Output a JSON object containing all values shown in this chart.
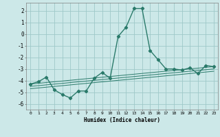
{
  "title": "",
  "xlabel": "Humidex (Indice chaleur)",
  "background_color": "#cce8e8",
  "grid_color": "#9ec8c8",
  "line_color": "#2a7a6a",
  "xlim": [
    -0.5,
    23.5
  ],
  "ylim": [
    -6.5,
    2.7
  ],
  "x_ticks": [
    0,
    1,
    2,
    3,
    4,
    5,
    6,
    7,
    8,
    9,
    10,
    11,
    12,
    13,
    14,
    15,
    16,
    17,
    18,
    19,
    20,
    21,
    22,
    23
  ],
  "y_ticks": [
    -6,
    -5,
    -4,
    -3,
    -2,
    -1,
    0,
    1,
    2
  ],
  "series": [
    {
      "x": [
        0,
        1,
        2,
        3,
        4,
        5,
        6,
        7,
        8,
        9,
        10,
        11,
        12,
        13,
        14,
        15,
        16,
        17,
        18,
        19,
        20,
        21,
        22,
        23
      ],
      "y": [
        -4.3,
        -4.1,
        -3.7,
        -4.8,
        -5.2,
        -5.5,
        -4.9,
        -4.9,
        -3.8,
        -3.3,
        -3.8,
        -0.2,
        0.6,
        2.2,
        2.2,
        -1.4,
        -2.2,
        -3.0,
        -3.0,
        -3.1,
        -2.9,
        -3.4,
        -2.7,
        -2.8
      ],
      "marker": "D",
      "markersize": 2.2,
      "linewidth": 1.0
    },
    {
      "x": [
        0,
        23
      ],
      "y": [
        -4.3,
        -2.8
      ],
      "marker": null,
      "linewidth": 0.7
    },
    {
      "x": [
        0,
        23
      ],
      "y": [
        -4.5,
        -3.0
      ],
      "marker": null,
      "linewidth": 0.7
    },
    {
      "x": [
        0,
        23
      ],
      "y": [
        -4.7,
        -3.2
      ],
      "marker": null,
      "linewidth": 0.7
    }
  ]
}
